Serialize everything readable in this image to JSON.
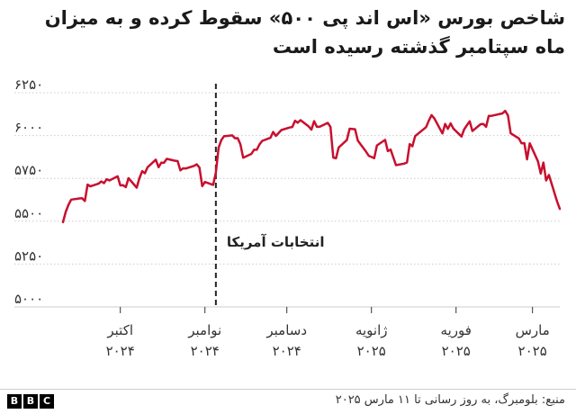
{
  "title": {
    "line1": "شاخص بورس «اس اند پی ۵۰۰»  سقوط کرده و به میزان",
    "line2": "ماه سپتامبر گذشته رسیده است"
  },
  "source": "منبع: بلومبرگ، به روز رسانی تا ۱۱ مارس ۲۰۲۵",
  "logo": [
    "B",
    "B",
    "C"
  ],
  "colors": {
    "line": "#c8102e",
    "grid": "#cccccc",
    "text": "#333333"
  },
  "chart_data": {
    "type": "line",
    "ylim": [
      5000,
      6250
    ],
    "yticks": [
      {
        "value": 5000,
        "label": "۵۰۰۰"
      },
      {
        "value": 5250,
        "label": "۵۲۵۰"
      },
      {
        "value": 5500,
        "label": "۵۵۰۰"
      },
      {
        "value": 5750,
        "label": "۵۷۵۰"
      },
      {
        "value": 6000,
        "label": "۶۰۰۰"
      },
      {
        "value": 6250,
        "label": "۶۲۵۰"
      }
    ],
    "xlim": [
      "2024-09-10",
      "2025-03-11"
    ],
    "xticks": [
      {
        "date": "2024-10-01",
        "line1": "اکتبر",
        "line2": "۲۰۲۴"
      },
      {
        "date": "2024-11-01",
        "line1": "نوامبر",
        "line2": "۲۰۲۴"
      },
      {
        "date": "2024-12-01",
        "line1": "دسامبر",
        "line2": "۲۰۲۴"
      },
      {
        "date": "2025-01-01",
        "line1": "ژانویه",
        "line2": "۲۰۲۵"
      },
      {
        "date": "2025-02-01",
        "line1": "فوریه",
        "line2": "۲۰۲۵"
      },
      {
        "date": "2025-03-01",
        "line1": "مارس",
        "line2": "۲۰۲۵"
      }
    ],
    "grid": true,
    "annotation": {
      "date": "2024-11-05",
      "label": "انتخابات آمریکا",
      "style": "dashed"
    },
    "series": [
      {
        "points": [
          [
            "2024-09-10",
            5495
          ],
          [
            "2024-09-11",
            5554
          ],
          [
            "2024-09-12",
            5596
          ],
          [
            "2024-09-13",
            5626
          ],
          [
            "2024-09-16",
            5633
          ],
          [
            "2024-09-17",
            5634
          ],
          [
            "2024-09-18",
            5618
          ],
          [
            "2024-09-19",
            5714
          ],
          [
            "2024-09-20",
            5703
          ],
          [
            "2024-09-23",
            5719
          ],
          [
            "2024-09-24",
            5732
          ],
          [
            "2024-09-25",
            5722
          ],
          [
            "2024-09-26",
            5745
          ],
          [
            "2024-09-27",
            5738
          ],
          [
            "2024-09-30",
            5762
          ],
          [
            "2024-10-01",
            5709
          ],
          [
            "2024-10-02",
            5710
          ],
          [
            "2024-10-03",
            5699
          ],
          [
            "2024-10-04",
            5751
          ],
          [
            "2024-10-07",
            5696
          ],
          [
            "2024-10-08",
            5751
          ],
          [
            "2024-10-09",
            5792
          ],
          [
            "2024-10-10",
            5780
          ],
          [
            "2024-10-11",
            5815
          ],
          [
            "2024-10-14",
            5859
          ],
          [
            "2024-10-15",
            5815
          ],
          [
            "2024-10-16",
            5842
          ],
          [
            "2024-10-17",
            5841
          ],
          [
            "2024-10-18",
            5864
          ],
          [
            "2024-10-21",
            5853
          ],
          [
            "2024-10-22",
            5851
          ],
          [
            "2024-10-23",
            5797
          ],
          [
            "2024-10-24",
            5809
          ],
          [
            "2024-10-25",
            5808
          ],
          [
            "2024-10-28",
            5823
          ],
          [
            "2024-10-29",
            5832
          ],
          [
            "2024-10-30",
            5813
          ],
          [
            "2024-10-31",
            5705
          ],
          [
            "2024-11-01",
            5729
          ],
          [
            "2024-11-04",
            5712
          ],
          [
            "2024-11-05",
            5782
          ],
          [
            "2024-11-06",
            5929
          ],
          [
            "2024-11-07",
            5973
          ],
          [
            "2024-11-08",
            5996
          ],
          [
            "2024-11-11",
            6001
          ],
          [
            "2024-11-12",
            5984
          ],
          [
            "2024-11-13",
            5985
          ],
          [
            "2024-11-14",
            5949
          ],
          [
            "2024-11-15",
            5871
          ],
          [
            "2024-11-18",
            5893
          ],
          [
            "2024-11-19",
            5917
          ],
          [
            "2024-11-20",
            5917
          ],
          [
            "2024-11-21",
            5949
          ],
          [
            "2024-11-22",
            5969
          ],
          [
            "2024-11-25",
            5987
          ],
          [
            "2024-11-26",
            6021
          ],
          [
            "2024-11-27",
            5998
          ],
          [
            "2024-11-29",
            6032
          ],
          [
            "2024-12-02",
            6047
          ],
          [
            "2024-12-03",
            6050
          ],
          [
            "2024-12-04",
            6086
          ],
          [
            "2024-12-05",
            6075
          ],
          [
            "2024-12-06",
            6090
          ],
          [
            "2024-12-09",
            6053
          ],
          [
            "2024-12-10",
            6034
          ],
          [
            "2024-12-11",
            6084
          ],
          [
            "2024-12-12",
            6051
          ],
          [
            "2024-12-13",
            6051
          ],
          [
            "2024-12-16",
            6074
          ],
          [
            "2024-12-17",
            6050
          ],
          [
            "2024-12-18",
            5872
          ],
          [
            "2024-12-19",
            5867
          ],
          [
            "2024-12-20",
            5930
          ],
          [
            "2024-12-23",
            5974
          ],
          [
            "2024-12-24",
            6040
          ],
          [
            "2024-12-26",
            6037
          ],
          [
            "2024-12-27",
            5970
          ],
          [
            "2024-12-30",
            5906
          ],
          [
            "2024-12-31",
            5882
          ],
          [
            "2025-01-02",
            5868
          ],
          [
            "2025-01-03",
            5942
          ],
          [
            "2025-01-06",
            5975
          ],
          [
            "2025-01-07",
            5909
          ],
          [
            "2025-01-08",
            5918
          ],
          [
            "2025-01-10",
            5827
          ],
          [
            "2025-01-13",
            5836
          ],
          [
            "2025-01-14",
            5843
          ],
          [
            "2025-01-15",
            5950
          ],
          [
            "2025-01-16",
            5937
          ],
          [
            "2025-01-17",
            5997
          ],
          [
            "2025-01-21",
            6049
          ],
          [
            "2025-01-22",
            6086
          ],
          [
            "2025-01-23",
            6119
          ],
          [
            "2025-01-24",
            6101
          ],
          [
            "2025-01-27",
            6012
          ],
          [
            "2025-01-28",
            6068
          ],
          [
            "2025-01-29",
            6039
          ],
          [
            "2025-01-30",
            6071
          ],
          [
            "2025-01-31",
            6041
          ],
          [
            "2025-02-03",
            5994
          ],
          [
            "2025-02-04",
            6037
          ],
          [
            "2025-02-05",
            6061
          ],
          [
            "2025-02-06",
            6083
          ],
          [
            "2025-02-07",
            6026
          ],
          [
            "2025-02-10",
            6066
          ],
          [
            "2025-02-11",
            6068
          ],
          [
            "2025-02-12",
            6051
          ],
          [
            "2025-02-13",
            6115
          ],
          [
            "2025-02-14",
            6115
          ],
          [
            "2025-02-18",
            6129
          ],
          [
            "2025-02-19",
            6144
          ],
          [
            "2025-02-20",
            6117
          ],
          [
            "2025-02-21",
            6013
          ],
          [
            "2025-02-24",
            5983
          ],
          [
            "2025-02-25",
            5955
          ],
          [
            "2025-02-26",
            5956
          ],
          [
            "2025-02-27",
            5861
          ],
          [
            "2025-02-28",
            5955
          ],
          [
            "2025-03-03",
            5850
          ],
          [
            "2025-03-04",
            5778
          ],
          [
            "2025-03-05",
            5842
          ],
          [
            "2025-03-06",
            5738
          ],
          [
            "2025-03-07",
            5770
          ],
          [
            "2025-03-10",
            5615
          ],
          [
            "2025-03-11",
            5572
          ]
        ]
      }
    ]
  }
}
